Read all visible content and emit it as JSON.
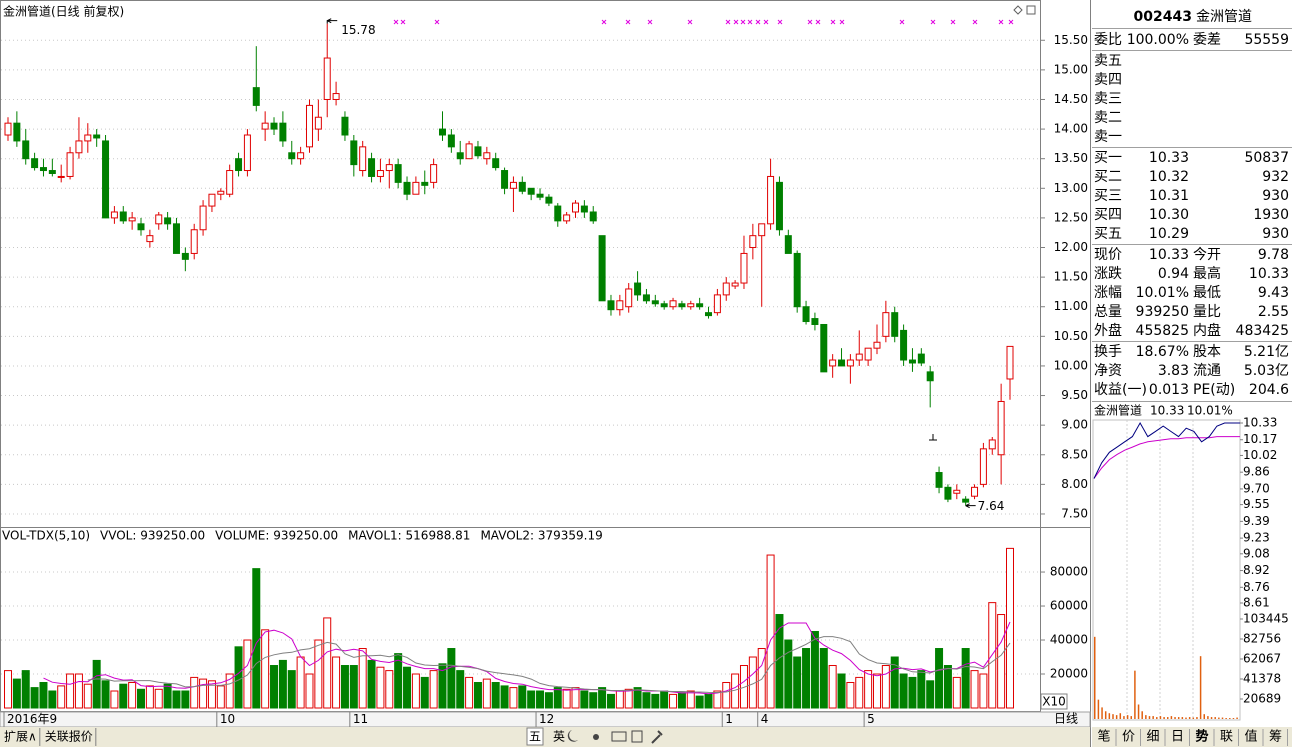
{
  "price_chart": {
    "type": "candlestick",
    "title": "金洲管道(日线 前复权)",
    "candles": [
      [
        13.9,
        14.2,
        13.8,
        14.1
      ],
      [
        14.1,
        14.3,
        13.7,
        13.8
      ],
      [
        13.8,
        14.0,
        13.4,
        13.5
      ],
      [
        13.5,
        13.6,
        13.3,
        13.35
      ],
      [
        13.35,
        13.5,
        13.2,
        13.3
      ],
      [
        13.3,
        13.5,
        13.2,
        13.25
      ],
      [
        13.2,
        13.4,
        13.1,
        13.2
      ],
      [
        13.2,
        13.7,
        13.15,
        13.6
      ],
      [
        13.6,
        14.2,
        13.5,
        13.8
      ],
      [
        13.8,
        14.1,
        13.6,
        13.9
      ],
      [
        13.9,
        14.0,
        13.7,
        13.85
      ],
      [
        13.8,
        13.9,
        12.5,
        12.5
      ],
      [
        12.5,
        12.7,
        12.4,
        12.6
      ],
      [
        12.6,
        12.7,
        12.4,
        12.45
      ],
      [
        12.45,
        12.6,
        12.3,
        12.5
      ],
      [
        12.4,
        12.5,
        12.2,
        12.3
      ],
      [
        12.1,
        12.3,
        12.0,
        12.2
      ],
      [
        12.4,
        12.6,
        12.3,
        12.55
      ],
      [
        12.5,
        12.6,
        12.3,
        12.4
      ],
      [
        12.4,
        12.5,
        11.9,
        11.9
      ],
      [
        11.9,
        12.0,
        11.6,
        11.8
      ],
      [
        11.9,
        12.4,
        11.8,
        12.3
      ],
      [
        12.3,
        12.8,
        12.2,
        12.7
      ],
      [
        12.7,
        12.9,
        12.6,
        12.9
      ],
      [
        12.9,
        13.0,
        12.8,
        12.95
      ],
      [
        12.9,
        13.4,
        12.85,
        13.3
      ],
      [
        13.5,
        13.6,
        13.2,
        13.3
      ],
      [
        13.3,
        14.0,
        13.2,
        13.9
      ],
      [
        14.7,
        15.4,
        14.3,
        14.4
      ],
      [
        14.0,
        14.3,
        13.8,
        14.1
      ],
      [
        14.1,
        14.2,
        13.9,
        14.0
      ],
      [
        14.1,
        14.3,
        13.7,
        13.8
      ],
      [
        13.6,
        13.8,
        13.4,
        13.5
      ],
      [
        13.5,
        13.7,
        13.4,
        13.6
      ],
      [
        13.7,
        14.5,
        13.6,
        14.4
      ],
      [
        14.0,
        14.5,
        13.8,
        14.2
      ],
      [
        14.5,
        15.78,
        14.2,
        15.2
      ],
      [
        14.5,
        14.8,
        14.4,
        14.6
      ],
      [
        14.2,
        14.3,
        13.8,
        13.9
      ],
      [
        13.8,
        13.9,
        13.2,
        13.4
      ],
      [
        13.3,
        13.8,
        13.2,
        13.7
      ],
      [
        13.5,
        13.6,
        13.1,
        13.2
      ],
      [
        13.2,
        13.5,
        13.1,
        13.3
      ],
      [
        13.3,
        13.5,
        13.0,
        13.4
      ],
      [
        13.4,
        13.5,
        13.0,
        13.1
      ],
      [
        13.1,
        13.2,
        12.8,
        12.9
      ],
      [
        12.9,
        13.2,
        12.9,
        13.1
      ],
      [
        13.1,
        13.3,
        12.9,
        13.05
      ],
      [
        13.1,
        13.5,
        13.0,
        13.4
      ],
      [
        14.0,
        14.3,
        13.8,
        13.9
      ],
      [
        13.9,
        14.0,
        13.6,
        13.7
      ],
      [
        13.6,
        13.8,
        13.4,
        13.5
      ],
      [
        13.5,
        13.8,
        13.5,
        13.75
      ],
      [
        13.7,
        13.8,
        13.5,
        13.55
      ],
      [
        13.5,
        13.7,
        13.4,
        13.6
      ],
      [
        13.5,
        13.6,
        13.3,
        13.35
      ],
      [
        13.3,
        13.35,
        12.9,
        13.0
      ],
      [
        13.0,
        13.2,
        12.6,
        13.1
      ],
      [
        13.1,
        13.2,
        12.9,
        12.95
      ],
      [
        13.0,
        13.0,
        12.8,
        12.9
      ],
      [
        12.9,
        13.0,
        12.8,
        12.85
      ],
      [
        12.85,
        12.9,
        12.7,
        12.75
      ],
      [
        12.7,
        12.75,
        12.35,
        12.45
      ],
      [
        12.45,
        12.6,
        12.4,
        12.55
      ],
      [
        12.6,
        12.8,
        12.5,
        12.75
      ],
      [
        12.7,
        12.8,
        12.5,
        12.6
      ],
      [
        12.6,
        12.7,
        12.4,
        12.45
      ],
      [
        12.2,
        12.2,
        11.1,
        11.1
      ],
      [
        11.1,
        11.2,
        10.85,
        10.95
      ],
      [
        10.95,
        11.2,
        10.85,
        11.1
      ],
      [
        11.0,
        11.4,
        10.9,
        11.3
      ],
      [
        11.4,
        11.6,
        11.1,
        11.2
      ],
      [
        11.2,
        11.3,
        11.05,
        11.1
      ],
      [
        11.1,
        11.2,
        11.0,
        11.05
      ],
      [
        11.05,
        11.1,
        10.95,
        11.0
      ],
      [
        11.0,
        11.15,
        10.95,
        11.1
      ],
      [
        11.05,
        11.1,
        10.95,
        11.0
      ],
      [
        11.0,
        11.1,
        10.95,
        11.05
      ],
      [
        11.05,
        11.15,
        10.95,
        11.0
      ],
      [
        10.9,
        11.0,
        10.8,
        10.85
      ],
      [
        10.9,
        11.3,
        10.85,
        11.2
      ],
      [
        11.2,
        11.5,
        11.1,
        11.4
      ],
      [
        11.35,
        11.45,
        11.3,
        11.4
      ],
      [
        11.4,
        12.2,
        11.3,
        11.9
      ],
      [
        12.0,
        12.4,
        11.8,
        12.2
      ],
      [
        12.2,
        12.4,
        11.0,
        12.4
      ],
      [
        12.4,
        13.5,
        12.3,
        13.2
      ],
      [
        13.1,
        13.2,
        12.2,
        12.3
      ],
      [
        12.2,
        12.3,
        11.9,
        11.9
      ],
      [
        11.9,
        11.95,
        10.9,
        11.0
      ],
      [
        11.0,
        11.1,
        10.7,
        10.75
      ],
      [
        10.8,
        10.9,
        10.6,
        10.7
      ],
      [
        10.7,
        10.7,
        9.9,
        9.9
      ],
      [
        10.0,
        10.2,
        9.8,
        10.1
      ],
      [
        10.1,
        10.3,
        10.0,
        10.0
      ],
      [
        10.0,
        10.2,
        9.7,
        10.1
      ],
      [
        10.1,
        10.6,
        10.0,
        10.2
      ],
      [
        10.1,
        10.3,
        10.0,
        10.3
      ],
      [
        10.3,
        10.7,
        10.2,
        10.4
      ],
      [
        10.5,
        11.1,
        10.4,
        10.9
      ],
      [
        10.9,
        11.0,
        10.4,
        10.5
      ],
      [
        10.6,
        10.7,
        10.0,
        10.1
      ],
      [
        10.1,
        10.3,
        9.9,
        10.05
      ],
      [
        10.2,
        10.3,
        10.0,
        10.05
      ],
      [
        9.9,
        10.0,
        9.3,
        9.75
      ],
      [
        8.2,
        8.3,
        7.85,
        7.95
      ],
      [
        7.95,
        8.0,
        7.7,
        7.75
      ],
      [
        7.85,
        8.0,
        7.75,
        7.9
      ],
      [
        7.75,
        7.8,
        7.64,
        7.7
      ],
      [
        7.8,
        8.0,
        7.75,
        7.95
      ],
      [
        8.0,
        8.7,
        7.95,
        8.6
      ],
      [
        8.6,
        8.8,
        8.5,
        8.75
      ],
      [
        8.5,
        9.7,
        8.0,
        9.4
      ],
      [
        9.78,
        10.33,
        9.43,
        10.33
      ]
    ],
    "up_color": "#e00000",
    "down_color": "#008000",
    "ylim": [
      7.28,
      16.18
    ],
    "yticks": [
      {
        "value": 15.5,
        "label": "15.50"
      },
      {
        "value": 15.0,
        "label": "15.00"
      },
      {
        "value": 14.5,
        "label": "14.50"
      },
      {
        "value": 14.0,
        "label": "14.00"
      },
      {
        "value": 13.5,
        "label": "13.50"
      },
      {
        "value": 13.0,
        "label": "13.00"
      },
      {
        "value": 12.5,
        "label": "12.50"
      },
      {
        "value": 12.0,
        "label": "12.00"
      },
      {
        "value": 11.5,
        "label": "11.50"
      },
      {
        "value": 11.0,
        "label": "11.00"
      },
      {
        "value": 10.5,
        "label": "10.50"
      },
      {
        "value": 10.0,
        "label": "10.00"
      },
      {
        "value": 9.5,
        "label": "9.50"
      },
      {
        "value": 9.0,
        "label": "9.00"
      },
      {
        "value": 8.5,
        "label": "8.50"
      },
      {
        "value": 8.0,
        "label": "8.00"
      },
      {
        "value": 7.5,
        "label": "7.50"
      }
    ],
    "grid": true,
    "high": 15.78,
    "low": 7.64,
    "date_labels": [
      {
        "label": "2016年9",
        "at": 0
      },
      {
        "label": "10",
        "at": 24
      },
      {
        "label": "11",
        "at": 39
      },
      {
        "label": "12",
        "at": 60
      },
      {
        "label": "1",
        "at": 81
      },
      {
        "label": "4",
        "at": 85
      },
      {
        "label": "5",
        "at": 97
      }
    ],
    "period": "日线"
  },
  "volume_chart": {
    "type": "bar",
    "legend": [
      {
        "text": "VOL-TDX(5,10)",
        "color": "#000000"
      },
      {
        "text": "VVOL: 939250.00",
        "color": "#000000"
      },
      {
        "text": "VOLUME: 939250.00",
        "color": "#cc00cc"
      },
      {
        "text": "MAVOL1: 516988.81",
        "color": "#cc00cc"
      },
      {
        "text": "MAVOL2: 379359.19",
        "color": "#808080"
      }
    ],
    "values": [
      22000,
      17000,
      22000,
      12000,
      15000,
      10000,
      13000,
      20000,
      20000,
      14000,
      28000,
      16000,
      10000,
      14000,
      15000,
      11000,
      13000,
      11000,
      14000,
      10000,
      10000,
      18000,
      17000,
      16000,
      13000,
      20000,
      36000,
      40000,
      82000,
      46000,
      25000,
      28000,
      22000,
      30000,
      20000,
      40000,
      53000,
      30000,
      25000,
      25000,
      35000,
      28000,
      24000,
      22000,
      32000,
      24000,
      20000,
      18000,
      22000,
      26000,
      35000,
      22000,
      18000,
      15000,
      17000,
      15000,
      13000,
      12000,
      13000,
      10000,
      10000,
      9000,
      12000,
      11000,
      12000,
      10000,
      9000,
      12000,
      8000,
      10000,
      11000,
      12000,
      9000,
      8000,
      10000,
      8000,
      9000,
      10000,
      7000,
      8000,
      10000,
      15000,
      20000,
      25000,
      30000,
      35000,
      90000,
      55000,
      40000,
      30000,
      35000,
      45000,
      35000,
      25000,
      20000,
      15000,
      18000,
      22000,
      20000,
      25000,
      30000,
      20000,
      18000,
      22000,
      16000,
      35000,
      25000,
      18000,
      35000,
      22000,
      20000,
      62000,
      55000,
      93925
    ],
    "ma_periods": [
      5,
      10
    ],
    "ma_colors": [
      "#cc00cc",
      "#808080"
    ],
    "ylim": [
      0,
      106500
    ],
    "yticks": [
      20000,
      40000,
      60000,
      80000
    ],
    "unit": "X10"
  },
  "quote": {
    "code": "002443",
    "name": "金洲管道",
    "order_ratio": [
      "委比",
      "100.00%",
      "委差",
      "55559"
    ],
    "asks": [
      "卖五",
      "卖四",
      "卖三",
      "卖二",
      "卖一"
    ],
    "bids": [
      [
        "买一",
        "10.33",
        "50837"
      ],
      [
        "买二",
        "10.32",
        "932"
      ],
      [
        "买三",
        "10.31",
        "930"
      ],
      [
        "买四",
        "10.30",
        "1930"
      ],
      [
        "买五",
        "10.29",
        "930"
      ]
    ],
    "stats": [
      [
        "现价",
        "10.33",
        "今开",
        "9.78"
      ],
      [
        "涨跌",
        "0.94",
        "最高",
        "10.33"
      ],
      [
        "涨幅",
        "10.01%",
        "最低",
        "9.43"
      ],
      [
        "总量",
        "939250",
        "量比",
        "2.55"
      ],
      [
        "外盘",
        "455825",
        "内盘",
        "483425"
      ]
    ],
    "stats_colors": [
      [
        "#e00000",
        "#e00000"
      ],
      [
        "#e00000",
        "#e00000"
      ],
      [
        "#e00000",
        "#e00000"
      ],
      [
        "#c04000",
        "#e00000"
      ],
      [
        "#e00000",
        "#008000"
      ]
    ],
    "fundamentals": [
      [
        "换手",
        "18.67%",
        "股本",
        "5.21亿"
      ],
      [
        "净资",
        "3.83",
        "流通",
        "5.03亿"
      ],
      [
        "收益(一)",
        "0.013",
        "PE(动)",
        "204.6"
      ]
    ]
  },
  "intraday": {
    "name": "金洲管道",
    "price_text": "10.33",
    "change_text": "10.01%",
    "price": [
      9.8,
      9.95,
      10.05,
      10.1,
      10.15,
      10.2,
      10.33,
      10.2,
      10.25,
      10.3,
      10.25,
      10.2,
      10.28,
      10.25,
      10.15,
      10.2,
      10.3,
      10.33,
      10.33,
      10.33
    ],
    "average": [
      9.8,
      9.9,
      9.98,
      10.03,
      10.07,
      10.1,
      10.13,
      10.15,
      10.16,
      10.17,
      10.18,
      10.18,
      10.19,
      10.19,
      10.19,
      10.19,
      10.2,
      10.2,
      10.2,
      10.2
    ],
    "price_color": "#000080",
    "average_color": "#cc00cc",
    "ylim": [
      8.61,
      10.33
    ],
    "yticks": [
      10.33,
      10.17,
      10.02,
      9.86,
      {
        "value": 9.7,
        "label": "9.70"
      },
      9.55,
      9.39,
      9.23,
      9.08,
      8.92,
      8.76,
      8.61
    ],
    "volume": [
      85000,
      20000,
      12000,
      8000,
      6000,
      5000,
      4000,
      6000,
      3000,
      4000,
      3000,
      50000,
      15000,
      8000,
      4000,
      3000,
      3000,
      2000,
      3000,
      2000,
      2000,
      3000,
      2000,
      2000,
      2000,
      1500,
      2000,
      1500,
      2000,
      65000,
      5000,
      3000,
      2000,
      2000,
      1500,
      1500,
      1000,
      1000,
      1000,
      1500
    ],
    "volume_color": "#e06010",
    "volume_ylim": [
      0,
      103445
    ],
    "volume_ticks": [
      103445,
      82756,
      62067,
      41378,
      20689
    ]
  },
  "toolbar": {
    "left_tabs": [
      "扩展∧",
      "关联报价"
    ],
    "center_buttons": [
      "五",
      "英"
    ],
    "right_tabs": [
      "笔",
      "价",
      "细",
      "日",
      "势",
      "联",
      "值",
      "筹"
    ]
  }
}
